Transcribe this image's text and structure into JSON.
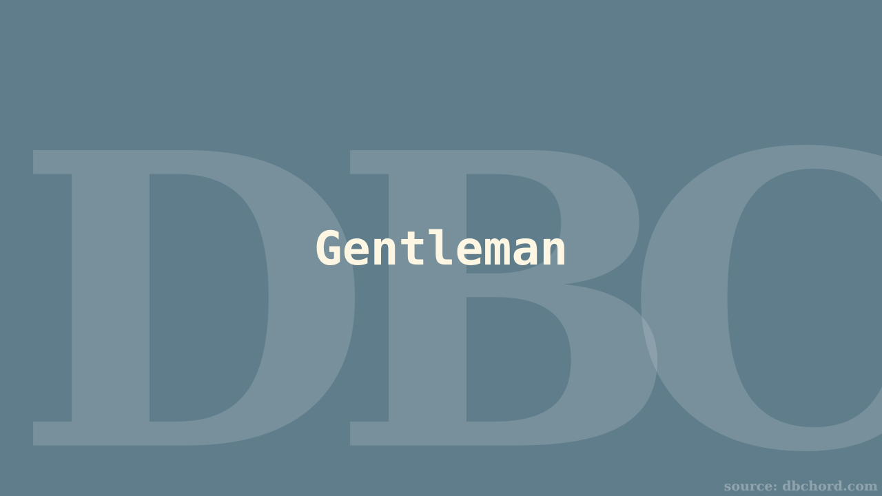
{
  "watermark": {
    "letters": [
      "D",
      "B",
      "C"
    ]
  },
  "title": "Gentleman",
  "source": "source: dbchord.com",
  "colors": {
    "background": "#607d8b",
    "title": "#fdf6e3",
    "watermark": "rgba(255,255,255,0.15)"
  }
}
